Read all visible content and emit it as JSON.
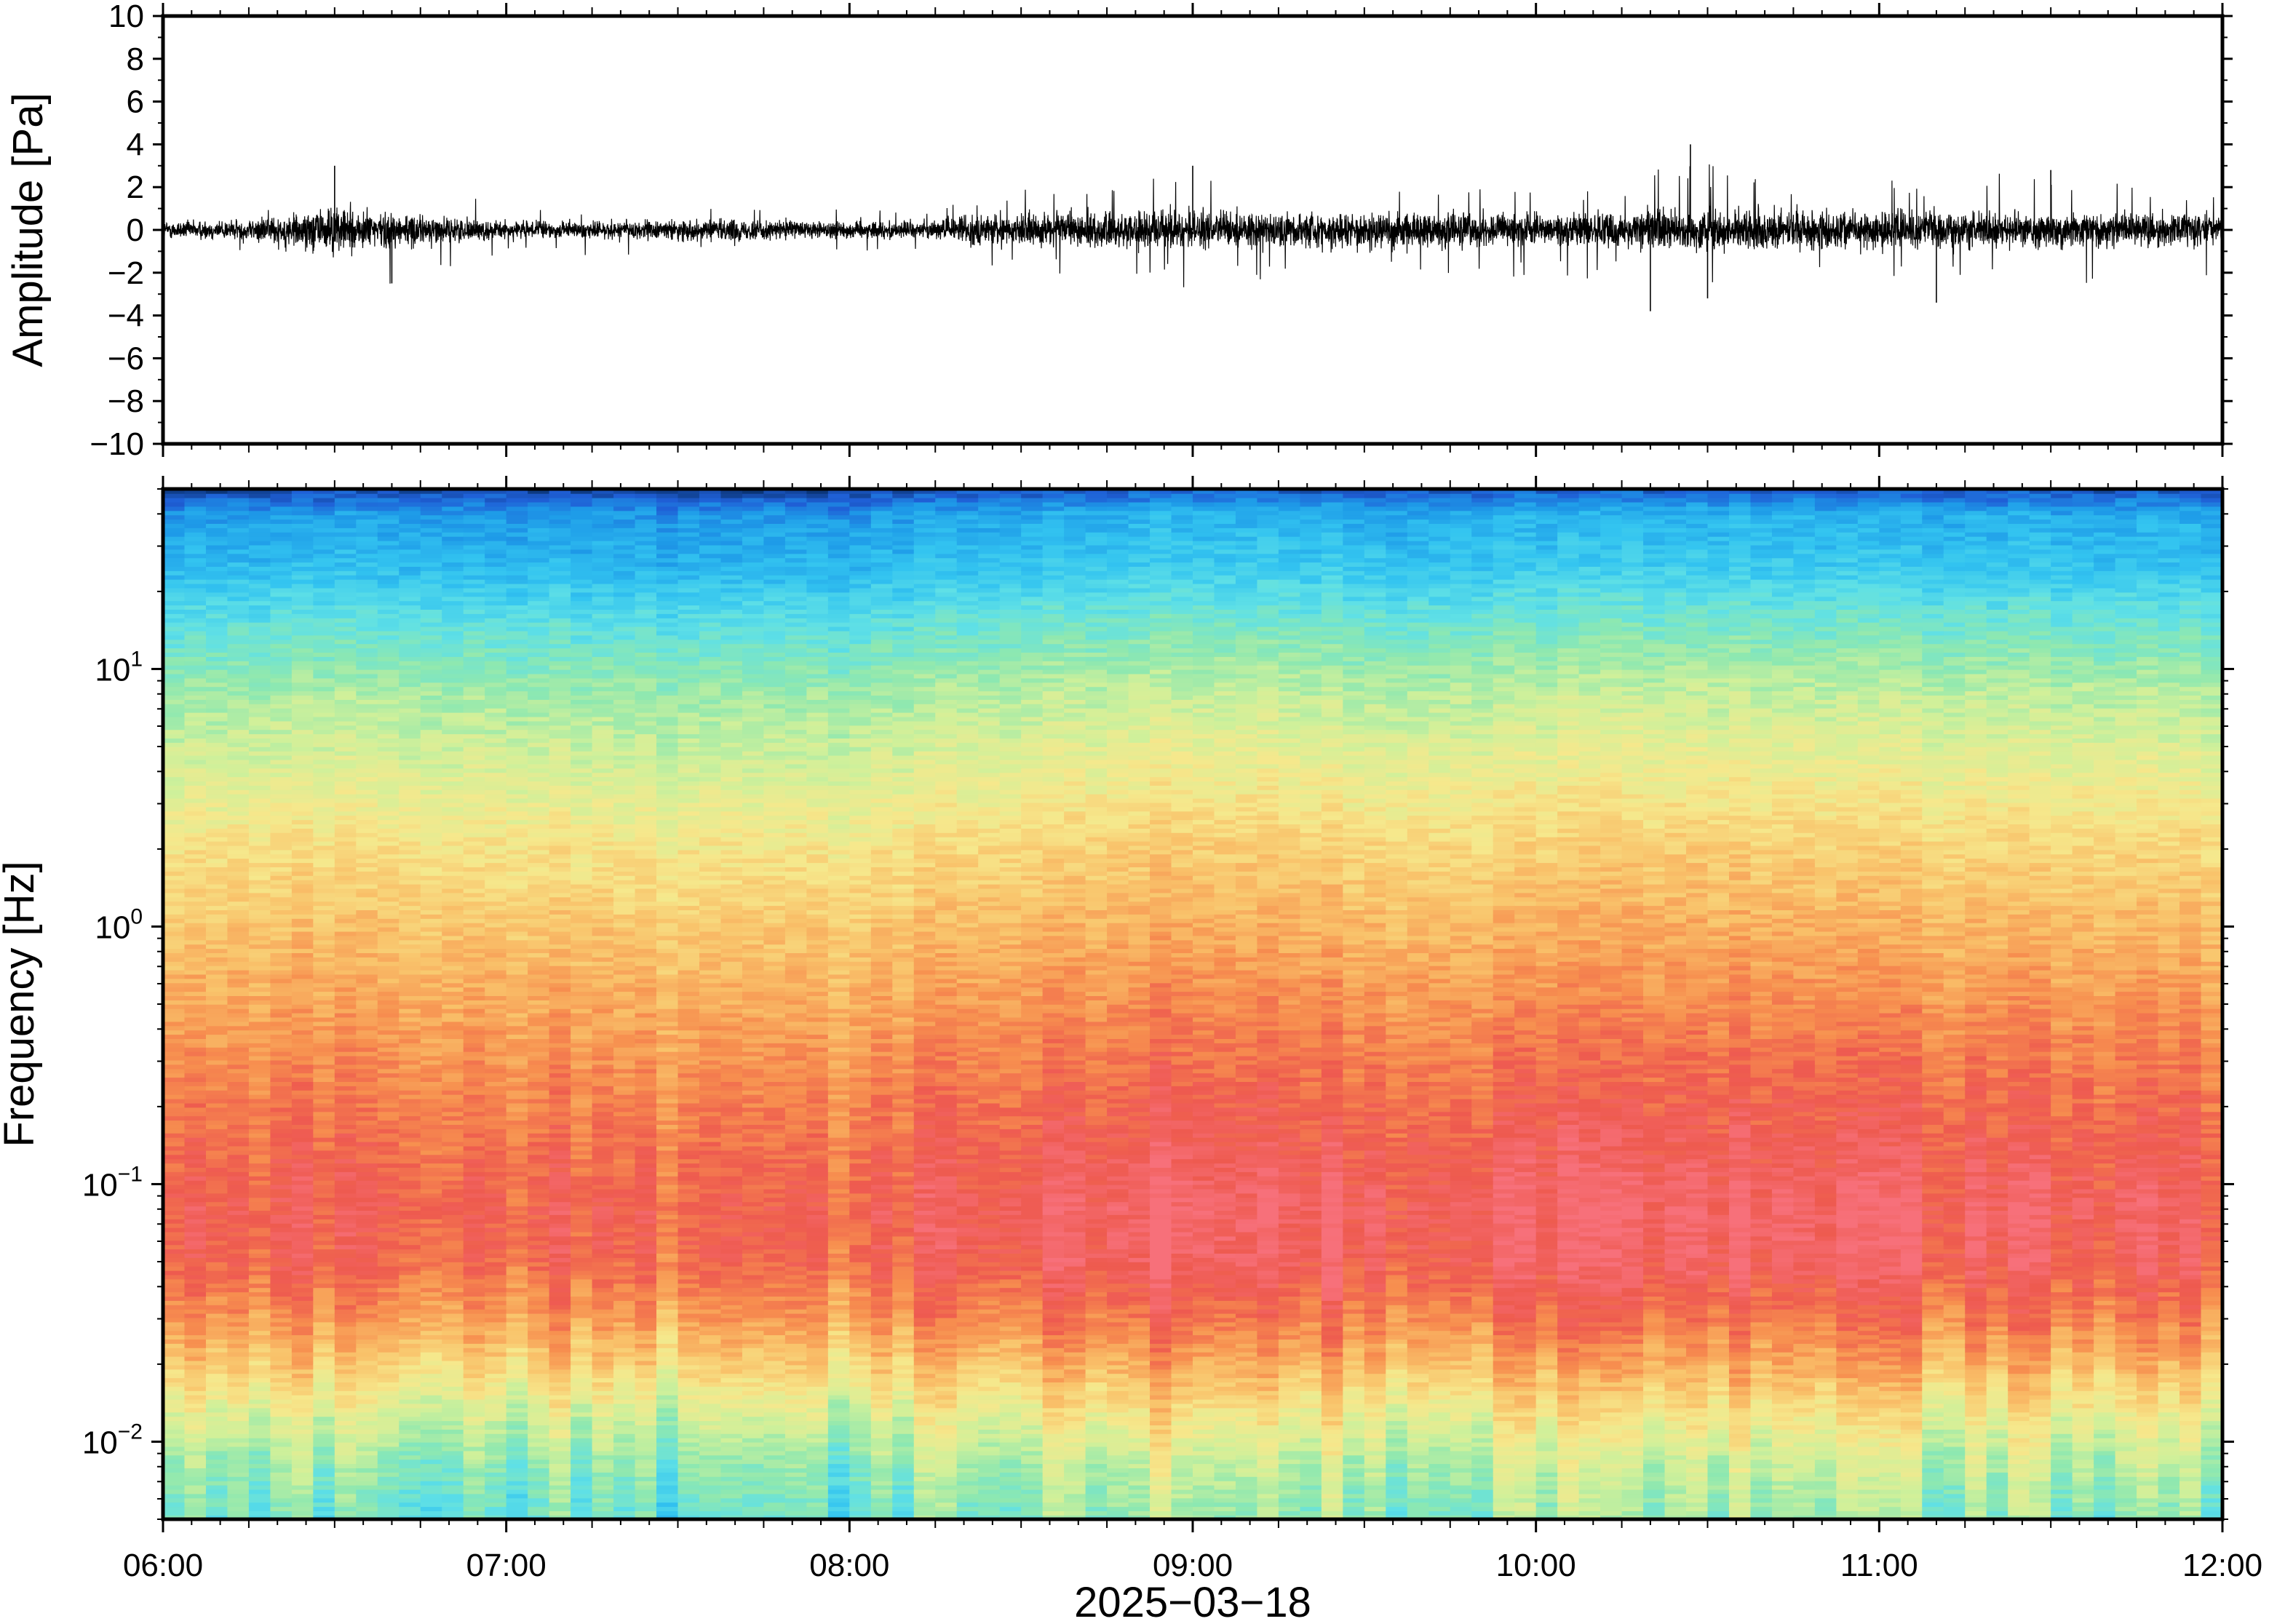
{
  "chart_data": [
    {
      "type": "line",
      "panel": "waveform",
      "ylabel": "Amplitude [Pa]",
      "ylim": [
        -10,
        10
      ],
      "yticks": [
        -10,
        -8,
        -6,
        -4,
        -2,
        0,
        2,
        4,
        6,
        8,
        10
      ],
      "ytick_labels": [
        "−10",
        "−8",
        "−6",
        "−4",
        "−2",
        "0",
        "2",
        "4",
        "6",
        "8",
        "10"
      ],
      "xlim": [
        "2025-03-18 06:00",
        "2025-03-18 12:00"
      ],
      "envelope": {
        "time": [
          "06:00",
          "06:15",
          "06:25",
          "06:30",
          "06:40",
          "06:50",
          "07:00",
          "07:15",
          "07:30",
          "07:45",
          "08:00",
          "08:15",
          "08:20",
          "08:30",
          "08:45",
          "09:00",
          "09:15",
          "09:30",
          "09:45",
          "10:00",
          "10:15",
          "10:20",
          "10:30",
          "10:45",
          "11:00",
          "11:15",
          "11:30",
          "11:45",
          "12:00"
        ],
        "typical": [
          0.5,
          0.6,
          1.2,
          1.3,
          1.0,
          0.7,
          0.5,
          0.5,
          0.6,
          0.6,
          0.5,
          0.5,
          0.8,
          0.9,
          1.0,
          1.1,
          1.0,
          1.0,
          1.0,
          0.9,
          1.0,
          1.2,
          1.2,
          1.1,
          1.0,
          1.0,
          1.0,
          0.9,
          0.9
        ],
        "peak": [
          0.8,
          1.0,
          1.8,
          3.0,
          2.6,
          1.9,
          1.0,
          1.2,
          1.3,
          1.2,
          1.0,
          0.9,
          1.7,
          2.2,
          2.3,
          2.8,
          2.6,
          2.3,
          2.2,
          2.2,
          2.4,
          3.8,
          3.2,
          2.5,
          2.3,
          2.6,
          2.8,
          2.4,
          2.2
        ]
      },
      "spikes": [
        {
          "time": "06:30",
          "value": 3.0
        },
        {
          "time": "06:40",
          "value": -2.5
        },
        {
          "time": "09:00",
          "value": 3.0
        },
        {
          "time": "10:20",
          "value": -3.8
        },
        {
          "time": "10:27",
          "value": 4.0
        },
        {
          "time": "10:30",
          "value": -3.2
        },
        {
          "time": "11:10",
          "value": -3.4
        },
        {
          "time": "11:30",
          "value": 2.8
        }
      ]
    },
    {
      "type": "heatmap",
      "panel": "spectrogram",
      "ylabel": "Frequency [Hz]",
      "yscale": "log",
      "ylim_hz": [
        0.005,
        50
      ],
      "ytick_labels": [
        {
          "base": "10",
          "exp": "−2"
        },
        {
          "base": "10",
          "exp": "−1"
        },
        {
          "base": "10",
          "exp": "0"
        },
        {
          "base": "10",
          "exp": "1"
        }
      ],
      "ytick_values": [
        0.01,
        0.1,
        1,
        10
      ],
      "xlim": [
        "2025-03-18 06:00",
        "2025-03-18 12:00"
      ],
      "colormap": [
        "#08306b",
        "#1f5fd6",
        "#1e9be8",
        "#33c4f0",
        "#5fe0e6",
        "#8ee8b0",
        "#d0f09a",
        "#f6e88c",
        "#f9c26a",
        "#f78f4f",
        "#ee5a4f",
        "#f7707a"
      ],
      "colormap_order": "low power to high power",
      "mean_power_by_frequency": {
        "frequency_hz": [
          0.005,
          0.008,
          0.012,
          0.02,
          0.03,
          0.05,
          0.08,
          0.12,
          0.2,
          0.35,
          0.6,
          1,
          2,
          4,
          8,
          15,
          25,
          40,
          50
        ],
        "power_index": [
          4.6,
          5.3,
          6.3,
          7.9,
          9.0,
          10.0,
          10.2,
          9.9,
          9.5,
          9.0,
          8.5,
          8.0,
          7.3,
          6.4,
          5.5,
          4.2,
          2.9,
          2.2,
          0.6
        ]
      },
      "mean_power_by_time": {
        "time": [
          "06:00",
          "06:30",
          "07:00",
          "07:30",
          "08:00",
          "08:20",
          "08:45",
          "09:00",
          "09:15",
          "09:30",
          "09:45",
          "10:00",
          "10:15",
          "10:30",
          "10:45",
          "11:00",
          "11:30",
          "12:00"
        ],
        "relative": [
          -0.5,
          0.1,
          -0.2,
          -0.5,
          -0.4,
          0.2,
          0.6,
          0.8,
          0.7,
          0.3,
          0.4,
          0.5,
          0.8,
          0.7,
          0.6,
          0.5,
          0.3,
          0.3
        ]
      }
    }
  ],
  "x_axis": {
    "tick_labels": [
      "06:00",
      "07:00",
      "08:00",
      "09:00",
      "10:00",
      "11:00",
      "12:00"
    ],
    "date_label": "2025−03−18"
  },
  "colors": {
    "trace": "#000000",
    "frame": "#000000",
    "background": "#ffffff"
  }
}
